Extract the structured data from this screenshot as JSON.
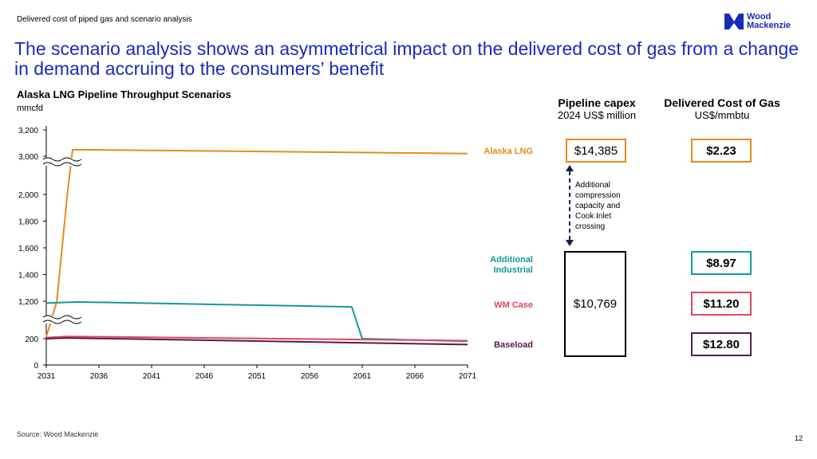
{
  "header_label": "Delivered cost of piped gas and scenario analysis",
  "logo": {
    "line1": "Wood",
    "line2": "Mackenzie",
    "color": "#1a2bb8"
  },
  "headline": "The scenario analysis shows an asymmetrical impact on the delivered cost of gas from a change in demand accruing to the consumers’ benefit",
  "chart_data": {
    "type": "line",
    "title": "Alaska LNG Pipeline Throughput Scenarios",
    "ylabel": "mmcfd",
    "xlim": [
      2031,
      2071
    ],
    "x_ticks": [
      "2031",
      "2036",
      "2041",
      "2046",
      "2051",
      "2056",
      "2061",
      "2066",
      "2071"
    ],
    "y_ticks": [
      "0",
      "200",
      "1,200",
      "1,400",
      "1,600",
      "1,800",
      "2,000",
      "3,000",
      "3,200"
    ],
    "y_axis_breaks": [
      "200 to 1,200",
      "2,000 to 3,000"
    ],
    "series": [
      {
        "name": "Alaska LNG",
        "color": "#e8891e",
        "points": [
          [
            2031,
            250
          ],
          [
            2032,
            1200
          ],
          [
            2033,
            2000
          ],
          [
            2033.5,
            3050
          ],
          [
            2071,
            3020
          ]
        ]
      },
      {
        "name": "Additional Industrial",
        "color": "#16999a",
        "points": [
          [
            2031,
            1150
          ],
          [
            2034,
            1180
          ],
          [
            2060,
            1050
          ],
          [
            2061,
            200
          ],
          [
            2071,
            180
          ]
        ]
      },
      {
        "name": "WM Case",
        "color": "#e0475a",
        "points": [
          [
            2031,
            230
          ],
          [
            2033,
            260
          ],
          [
            2071,
            185
          ]
        ]
      },
      {
        "name": "Baseload",
        "color": "#5a1a4a",
        "points": [
          [
            2031,
            200
          ],
          [
            2033,
            220
          ],
          [
            2071,
            155
          ]
        ]
      }
    ]
  },
  "columns": {
    "capex": {
      "title": "Pipeline capex",
      "subtitle": "2024 US$ million"
    },
    "cost": {
      "title": "Delivered Cost of Gas",
      "subtitle": "US$/mmbtu"
    }
  },
  "capex_values": {
    "high": "$14,385",
    "low": "$10,769"
  },
  "capex_note": "Additional compression capacity and Cook Inlet crossing",
  "scenarios": [
    {
      "label": "Alaska LNG",
      "cost": "$2.23",
      "color": "#e8891e"
    },
    {
      "label": "Additional Industrial",
      "cost": "$8.97",
      "color": "#16999a"
    },
    {
      "label": "WM Case",
      "cost": "$11.20",
      "color": "#e0475a"
    },
    {
      "label": "Baseload",
      "cost": "$12.80",
      "color": "#5a1a4a"
    }
  ],
  "source": "Source: Wood Mackenzie",
  "page_number": "12"
}
